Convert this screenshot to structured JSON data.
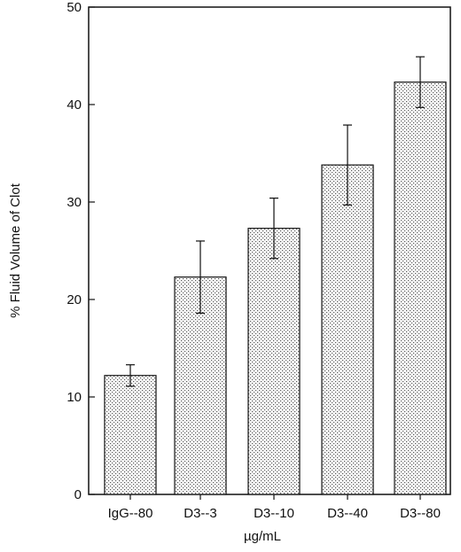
{
  "chart_data": {
    "type": "bar",
    "title": "",
    "xlabel": "µg/mL",
    "ylabel": "% Fluid Volume of Clot",
    "categories": [
      "IgG--80",
      "D3--3",
      "D3--10",
      "D3--40",
      "D3--80"
    ],
    "values": [
      12.2,
      22.3,
      27.3,
      33.8,
      42.3
    ],
    "errors": [
      1.1,
      3.7,
      3.1,
      4.1,
      2.6
    ],
    "ylim": [
      0,
      50
    ],
    "yticks": [
      0,
      10,
      20,
      30,
      40,
      50
    ],
    "grid": false,
    "bar_fill": "stippled"
  }
}
